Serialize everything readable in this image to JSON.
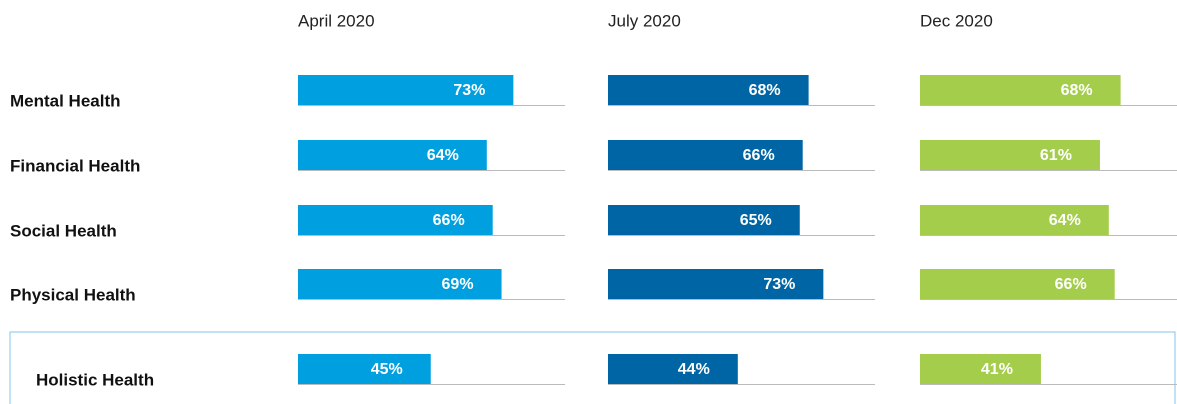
{
  "chart_data": {
    "type": "bar",
    "orientation": "horizontal",
    "categories": [
      "Mental Health",
      "Financial Health",
      "Social Health",
      "Physical Health",
      "Holistic Health"
    ],
    "xlim": [
      0,
      100
    ],
    "series": [
      {
        "name": "April 2020",
        "color": "#009fdf",
        "values": [
          73,
          64,
          66,
          69,
          45
        ],
        "value_labels": [
          "73%",
          "64%",
          "66%",
          "69%",
          "45%"
        ]
      },
      {
        "name": "July 2020",
        "color": "#0065a4",
        "values": [
          68,
          66,
          65,
          73,
          44
        ],
        "value_labels": [
          "68%",
          "66%",
          "65%",
          "73%",
          "44%"
        ]
      },
      {
        "name": "Dec 2020",
        "color": "#a4cd4b",
        "values": [
          68,
          61,
          64,
          66,
          41
        ],
        "value_labels": [
          "68%",
          "61%",
          "64%",
          "66%",
          "41%"
        ]
      }
    ]
  }
}
